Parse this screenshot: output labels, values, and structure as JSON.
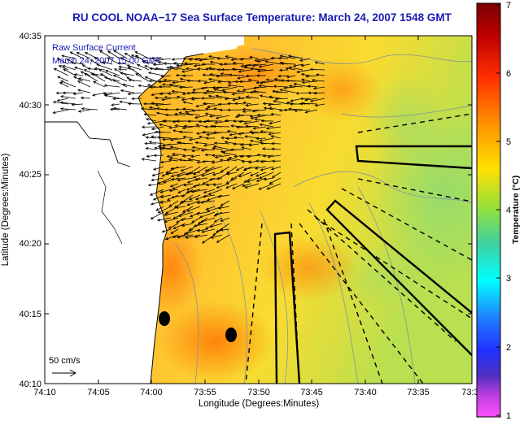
{
  "title": "RU COOL  NOAA−17  Sea Surface Temperature:  March 24, 2007 1548 GMT",
  "legend": {
    "line1": "Raw Surface Current",
    "line2": "March 24, 2007 15:00 GMT"
  },
  "scale_arrow_label": "50 cm/s",
  "chart_data": {
    "type": "heatmap",
    "title": "RU COOL  NOAA−17  Sea Surface Temperature:  March 24, 2007 1548 GMT",
    "xlabel": "Longitude (Degrees:Minutes)",
    "ylabel": "Latitude (Degrees:Minutes)",
    "x_ticks": [
      "74:10",
      "74:05",
      "74:00",
      "73:55",
      "73:50",
      "73:45",
      "73:40",
      "73:35",
      "73:3"
    ],
    "y_ticks": [
      "40:35",
      "40:30",
      "40:25",
      "40:20",
      "40:15",
      "40:10"
    ],
    "colorbar": {
      "label": "Temperature (°C)",
      "ticks": [
        "7",
        "6",
        "5",
        "4",
        "3",
        "2",
        "1"
      ],
      "range": [
        1,
        7
      ],
      "colors": [
        "#7a0000",
        "#ff3000",
        "#ff9900",
        "#ffe000",
        "#90e040",
        "#40d0a0",
        "#00ffff",
        "#2040ff",
        "#4040c0",
        "#ff40ff"
      ]
    },
    "grid": false,
    "colors": {
      "sst_field": "#ffb020",
      "water_warm": "#ff7a00",
      "water_cool": "#a8dc60",
      "land": "#ffffff",
      "current_vectors": "#000000"
    }
  }
}
